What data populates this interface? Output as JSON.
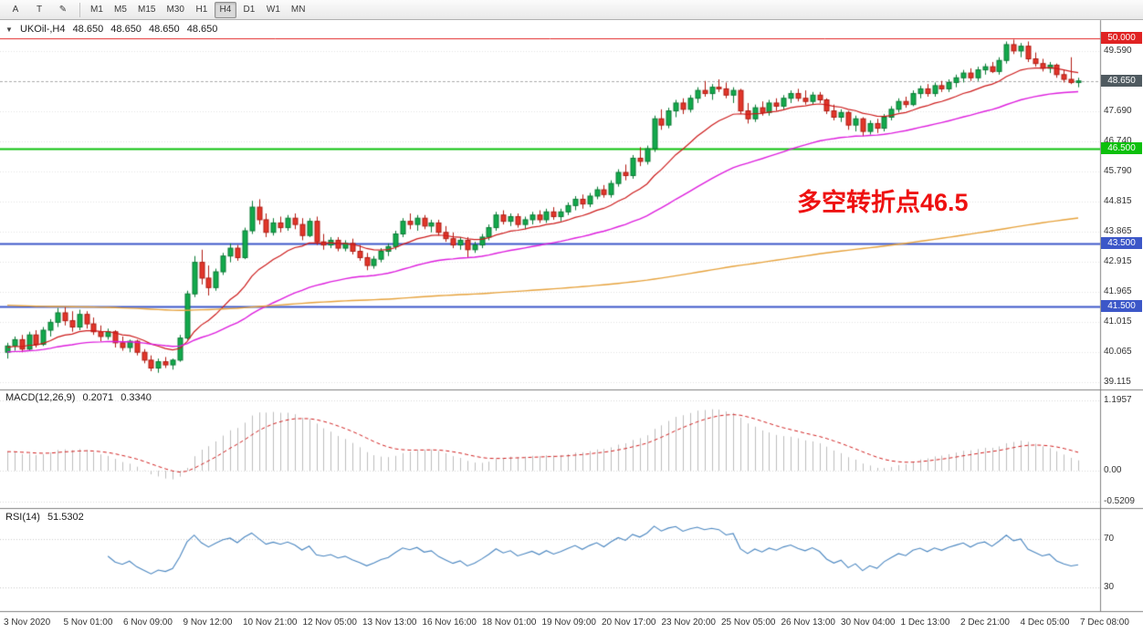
{
  "toolbar": {
    "tools": [
      {
        "name": "cursor-tool",
        "label": "A"
      },
      {
        "name": "text-tool",
        "label": "T"
      },
      {
        "name": "draw-tool",
        "label": "✎"
      }
    ],
    "timeframes": [
      "M1",
      "M5",
      "M15",
      "M30",
      "H1",
      "H4",
      "D1",
      "W1",
      "MN"
    ],
    "active_timeframe": "H4"
  },
  "colors": {
    "up_fill": "#12a94c",
    "up_border": "#0a7a34",
    "down_fill": "#e2362a",
    "down_border": "#b01b12",
    "separator": "#808080",
    "grid": "#e3e3e3"
  },
  "chart_data": {
    "type": "candlestick",
    "title": "UKOil-,H4",
    "ohlc": [
      "48.650",
      "48.650",
      "48.650",
      "48.650"
    ],
    "x_axis": {
      "labels": [
        "3 Nov 2020",
        "5 Nov 01:00",
        "6 Nov 09:00",
        "9 Nov 12:00",
        "10 Nov 21:00",
        "12 Nov 05:00",
        "13 Nov 13:00",
        "16 Nov 16:00",
        "18 Nov 01:00",
        "19 Nov 09:00",
        "20 Nov 17:00",
        "23 Nov 20:00",
        "25 Nov 05:00",
        "26 Nov 13:00",
        "30 Nov 04:00",
        "1 Dec 13:00",
        "2 Dec 21:00",
        "4 Dec 05:00",
        "7 Dec 08:00"
      ]
    },
    "y_axis": {
      "range": [
        38.9,
        50.55
      ],
      "labels": [
        {
          "text": "49.590",
          "value": 49.59
        },
        {
          "text": "47.690",
          "value": 47.69
        },
        {
          "text": "46.740",
          "value": 46.74
        },
        {
          "text": "45.790",
          "value": 45.79
        },
        {
          "text": "44.815",
          "value": 44.815
        },
        {
          "text": "43.865",
          "value": 43.865
        },
        {
          "text": "42.915",
          "value": 42.915
        },
        {
          "text": "41.965",
          "value": 41.965
        },
        {
          "text": "41.015",
          "value": 41.015
        },
        {
          "text": "40.065",
          "value": 40.065
        },
        {
          "text": "39.115",
          "value": 39.115
        }
      ]
    },
    "candles": [
      [
        40.05,
        40.35,
        39.85,
        40.25
      ],
      [
        40.25,
        40.55,
        40.1,
        40.45
      ],
      [
        40.45,
        40.6,
        40.05,
        40.15
      ],
      [
        40.15,
        40.7,
        40.1,
        40.6
      ],
      [
        40.6,
        40.75,
        40.2,
        40.3
      ],
      [
        40.3,
        40.85,
        40.25,
        40.75
      ],
      [
        40.75,
        41.1,
        40.55,
        41.0
      ],
      [
        41.0,
        41.45,
        40.85,
        41.3
      ],
      [
        41.3,
        41.5,
        40.9,
        41.05
      ],
      [
        41.05,
        41.35,
        40.7,
        40.85
      ],
      [
        40.85,
        41.4,
        40.75,
        41.25
      ],
      [
        41.25,
        41.35,
        40.8,
        40.95
      ],
      [
        40.95,
        41.15,
        40.6,
        40.7
      ],
      [
        40.7,
        40.9,
        40.4,
        40.55
      ],
      [
        40.55,
        40.8,
        40.45,
        40.7
      ],
      [
        40.7,
        40.75,
        40.2,
        40.35
      ],
      [
        40.35,
        40.55,
        40.1,
        40.2
      ],
      [
        40.2,
        40.45,
        40.05,
        40.4
      ],
      [
        40.4,
        40.45,
        39.95,
        40.05
      ],
      [
        40.05,
        40.15,
        39.7,
        39.8
      ],
      [
        39.8,
        39.95,
        39.45,
        39.55
      ],
      [
        39.55,
        39.85,
        39.4,
        39.75
      ],
      [
        39.75,
        39.9,
        39.55,
        39.65
      ],
      [
        39.65,
        39.85,
        39.5,
        39.8
      ],
      [
        39.8,
        40.6,
        39.75,
        40.5
      ],
      [
        40.5,
        42.0,
        40.45,
        41.9
      ],
      [
        41.9,
        43.1,
        41.8,
        42.9
      ],
      [
        42.9,
        43.3,
        42.2,
        42.4
      ],
      [
        42.4,
        42.8,
        41.85,
        42.1
      ],
      [
        42.1,
        42.7,
        42.0,
        42.6
      ],
      [
        42.6,
        43.2,
        42.5,
        43.1
      ],
      [
        43.1,
        43.5,
        42.9,
        43.35
      ],
      [
        43.35,
        43.45,
        42.95,
        43.05
      ],
      [
        43.05,
        44.0,
        43.0,
        43.9
      ],
      [
        43.9,
        44.85,
        43.8,
        44.65
      ],
      [
        44.65,
        44.9,
        44.1,
        44.25
      ],
      [
        44.25,
        44.45,
        43.7,
        43.85
      ],
      [
        43.85,
        44.3,
        43.75,
        44.15
      ],
      [
        44.15,
        44.35,
        43.85,
        44.0
      ],
      [
        44.0,
        44.4,
        43.9,
        44.3
      ],
      [
        44.3,
        44.45,
        43.95,
        44.1
      ],
      [
        44.1,
        44.3,
        43.6,
        43.75
      ],
      [
        43.75,
        44.3,
        43.7,
        44.2
      ],
      [
        44.2,
        44.35,
        43.45,
        43.55
      ],
      [
        43.55,
        43.8,
        43.3,
        43.45
      ],
      [
        43.45,
        43.7,
        43.35,
        43.6
      ],
      [
        43.6,
        43.7,
        43.25,
        43.35
      ],
      [
        43.35,
        43.6,
        43.25,
        43.5
      ],
      [
        43.5,
        43.65,
        43.15,
        43.25
      ],
      [
        43.25,
        43.45,
        42.95,
        43.05
      ],
      [
        43.05,
        43.2,
        42.65,
        42.8
      ],
      [
        42.8,
        43.1,
        42.7,
        43.0
      ],
      [
        43.0,
        43.35,
        42.9,
        43.25
      ],
      [
        43.25,
        43.5,
        43.1,
        43.4
      ],
      [
        43.4,
        43.9,
        43.3,
        43.8
      ],
      [
        43.8,
        44.3,
        43.7,
        44.2
      ],
      [
        44.2,
        44.45,
        43.95,
        44.1
      ],
      [
        44.1,
        44.4,
        43.9,
        44.3
      ],
      [
        44.3,
        44.4,
        43.95,
        44.05
      ],
      [
        44.05,
        44.25,
        43.85,
        44.15
      ],
      [
        44.15,
        44.25,
        43.75,
        43.85
      ],
      [
        43.85,
        44.05,
        43.55,
        43.65
      ],
      [
        43.65,
        43.85,
        43.35,
        43.45
      ],
      [
        43.45,
        43.7,
        43.3,
        43.6
      ],
      [
        43.6,
        43.7,
        43.05,
        43.3
      ],
      [
        43.3,
        43.55,
        43.2,
        43.45
      ],
      [
        43.45,
        43.8,
        43.35,
        43.7
      ],
      [
        43.7,
        44.1,
        43.6,
        44.0
      ],
      [
        44.0,
        44.5,
        43.9,
        44.4
      ],
      [
        44.4,
        44.55,
        44.1,
        44.2
      ],
      [
        44.2,
        44.45,
        44.05,
        44.35
      ],
      [
        44.35,
        44.45,
        44.0,
        44.1
      ],
      [
        44.1,
        44.35,
        43.95,
        44.25
      ],
      [
        44.25,
        44.5,
        44.1,
        44.4
      ],
      [
        44.4,
        44.55,
        44.15,
        44.25
      ],
      [
        44.25,
        44.6,
        44.15,
        44.5
      ],
      [
        44.5,
        44.65,
        44.25,
        44.35
      ],
      [
        44.35,
        44.6,
        44.2,
        44.5
      ],
      [
        44.5,
        44.8,
        44.4,
        44.7
      ],
      [
        44.7,
        45.0,
        44.55,
        44.9
      ],
      [
        44.9,
        45.05,
        44.6,
        44.75
      ],
      [
        44.75,
        45.1,
        44.65,
        45.0
      ],
      [
        45.0,
        45.3,
        44.9,
        45.2
      ],
      [
        45.2,
        45.35,
        44.95,
        45.05
      ],
      [
        45.05,
        45.5,
        44.95,
        45.4
      ],
      [
        45.4,
        45.85,
        45.3,
        45.75
      ],
      [
        45.75,
        46.0,
        45.5,
        45.65
      ],
      [
        45.65,
        46.3,
        45.55,
        46.2
      ],
      [
        46.2,
        46.55,
        45.95,
        46.1
      ],
      [
        46.1,
        46.6,
        46.0,
        46.5
      ],
      [
        46.5,
        47.55,
        46.4,
        47.45
      ],
      [
        47.45,
        47.75,
        47.1,
        47.25
      ],
      [
        47.25,
        47.8,
        47.15,
        47.7
      ],
      [
        47.7,
        48.05,
        47.5,
        47.95
      ],
      [
        47.95,
        48.1,
        47.6,
        47.75
      ],
      [
        47.75,
        48.2,
        47.65,
        48.1
      ],
      [
        48.1,
        48.45,
        47.95,
        48.35
      ],
      [
        48.35,
        48.65,
        48.15,
        48.25
      ],
      [
        48.25,
        48.55,
        48.05,
        48.45
      ],
      [
        48.45,
        48.7,
        48.3,
        48.4
      ],
      [
        48.4,
        48.6,
        48.1,
        48.2
      ],
      [
        48.2,
        48.45,
        47.95,
        48.35
      ],
      [
        48.35,
        48.4,
        47.6,
        47.7
      ],
      [
        47.7,
        47.95,
        47.3,
        47.45
      ],
      [
        47.45,
        47.9,
        47.35,
        47.8
      ],
      [
        47.8,
        48.0,
        47.55,
        47.65
      ],
      [
        47.65,
        48.05,
        47.55,
        47.95
      ],
      [
        47.95,
        48.1,
        47.7,
        47.85
      ],
      [
        47.85,
        48.2,
        47.75,
        48.1
      ],
      [
        48.1,
        48.35,
        47.95,
        48.25
      ],
      [
        48.25,
        48.4,
        48.0,
        48.1
      ],
      [
        48.1,
        48.35,
        47.9,
        48.0
      ],
      [
        48.0,
        48.3,
        47.9,
        48.2
      ],
      [
        48.2,
        48.3,
        47.95,
        48.05
      ],
      [
        48.05,
        48.1,
        47.6,
        47.7
      ],
      [
        47.7,
        47.9,
        47.4,
        47.5
      ],
      [
        47.5,
        47.75,
        47.35,
        47.65
      ],
      [
        47.65,
        47.7,
        47.1,
        47.25
      ],
      [
        47.25,
        47.55,
        47.05,
        47.45
      ],
      [
        47.45,
        47.5,
        46.9,
        47.05
      ],
      [
        47.05,
        47.4,
        46.95,
        47.3
      ],
      [
        47.3,
        47.45,
        47.0,
        47.15
      ],
      [
        47.15,
        47.6,
        47.05,
        47.5
      ],
      [
        47.5,
        47.85,
        47.4,
        47.75
      ],
      [
        47.75,
        48.1,
        47.65,
        48.0
      ],
      [
        48.0,
        48.15,
        47.8,
        47.9
      ],
      [
        47.9,
        48.35,
        47.85,
        48.25
      ],
      [
        48.25,
        48.5,
        48.1,
        48.4
      ],
      [
        48.4,
        48.55,
        48.15,
        48.25
      ],
      [
        48.25,
        48.6,
        48.15,
        48.5
      ],
      [
        48.5,
        48.65,
        48.3,
        48.4
      ],
      [
        48.4,
        48.7,
        48.3,
        48.6
      ],
      [
        48.6,
        48.85,
        48.45,
        48.75
      ],
      [
        48.75,
        49.0,
        48.6,
        48.9
      ],
      [
        48.9,
        49.05,
        48.65,
        48.75
      ],
      [
        48.75,
        49.1,
        48.65,
        49.0
      ],
      [
        49.0,
        49.2,
        48.85,
        49.1
      ],
      [
        49.1,
        49.25,
        48.9,
        48.95
      ],
      [
        48.95,
        49.4,
        48.85,
        49.3
      ],
      [
        49.3,
        49.9,
        49.2,
        49.8
      ],
      [
        49.8,
        49.96,
        49.5,
        49.6
      ],
      [
        49.6,
        49.85,
        49.4,
        49.75
      ],
      [
        49.75,
        49.9,
        49.25,
        49.35
      ],
      [
        49.35,
        49.55,
        49.1,
        49.2
      ],
      [
        49.2,
        49.35,
        48.95,
        49.05
      ],
      [
        49.05,
        49.25,
        48.9,
        49.15
      ],
      [
        49.15,
        49.2,
        48.75,
        48.85
      ],
      [
        48.85,
        49.0,
        48.6,
        48.7
      ],
      [
        48.7,
        49.4,
        48.55,
        48.6
      ],
      [
        48.6,
        48.75,
        48.45,
        48.65
      ]
    ],
    "moving_averages": [
      {
        "name": "ma-fast",
        "color": "#cc1a1a",
        "period": 15,
        "seed": 40.2,
        "width": 1.2
      },
      {
        "name": "ma-mid",
        "color": "#dd1edd",
        "period": 45,
        "seed": 40.05,
        "width": 1.4
      },
      {
        "name": "ma-slow",
        "color": "#e6a23c",
        "period": 300,
        "seed": 41.55,
        "width": 1.4
      }
    ],
    "levels": [
      {
        "name": "resistance-level",
        "price": 50.0,
        "label": "50.000",
        "color": "#e02222",
        "width": 1
      },
      {
        "name": "pivot-level",
        "price": 46.5,
        "label": "46.500",
        "color": "#0cc00c",
        "width": 2
      },
      {
        "name": "support-level-upper",
        "price": 43.5,
        "label": "43.500",
        "color": "#3c57c8",
        "width": 2
      },
      {
        "name": "support-level-lower",
        "price": 41.5,
        "label": "41.500",
        "color": "#3c57c8",
        "width": 2
      }
    ],
    "current_price": {
      "value": 48.65,
      "label": "48.650",
      "badge_color": "#4f5a60",
      "line_color": "#aaaaaa"
    },
    "annotation": {
      "text": "多空转折点46.5",
      "color": "#ee1111"
    },
    "indicators": [
      {
        "id": "macd",
        "label": "MACD(12,26,9)",
        "value_1": "0.2071",
        "value_2": "0.3340",
        "params": {
          "fast": 12,
          "slow": 26,
          "signal": 9,
          "slow_seed_offset": -0.35
        },
        "range": [
          -0.63,
          1.36
        ],
        "axis_labels": [
          {
            "text": "1.1957",
            "value": 1.1957
          },
          {
            "text": "0.00",
            "value": 0
          },
          {
            "text": "-0.5209",
            "value": -0.5209
          }
        ],
        "histogram_color": "#bdbdbd",
        "signal_color": "#d02020"
      },
      {
        "id": "rsi",
        "label": "RSI(14)",
        "value_1": "51.5302",
        "params": {
          "period": 14
        },
        "range": [
          10,
          95
        ],
        "axis_labels": [
          {
            "text": "70",
            "value": 70
          },
          {
            "text": "30",
            "value": 30
          }
        ],
        "line_color": "#4a86c0"
      }
    ]
  }
}
